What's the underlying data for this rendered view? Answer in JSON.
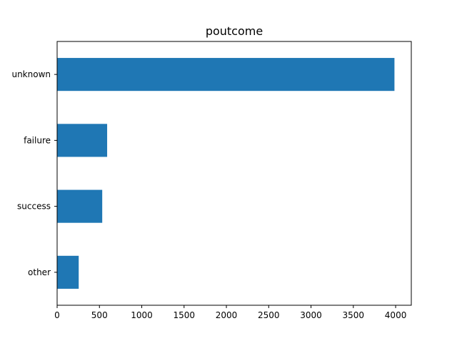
{
  "chart_data": {
    "type": "bar",
    "orientation": "horizontal",
    "title": "poutcome",
    "xlabel": "",
    "ylabel": "",
    "categories": [
      "unknown",
      "failure",
      "success",
      "other"
    ],
    "values": [
      3986,
      591,
      533,
      255
    ],
    "xlim": [
      0,
      4185
    ],
    "xticks": [
      0,
      500,
      1000,
      1500,
      2000,
      2500,
      3000,
      3500,
      4000
    ],
    "grid": false,
    "legend": "none",
    "colors": {
      "bar": "#1f77b4",
      "axis": "#000000",
      "background": "#ffffff"
    }
  }
}
